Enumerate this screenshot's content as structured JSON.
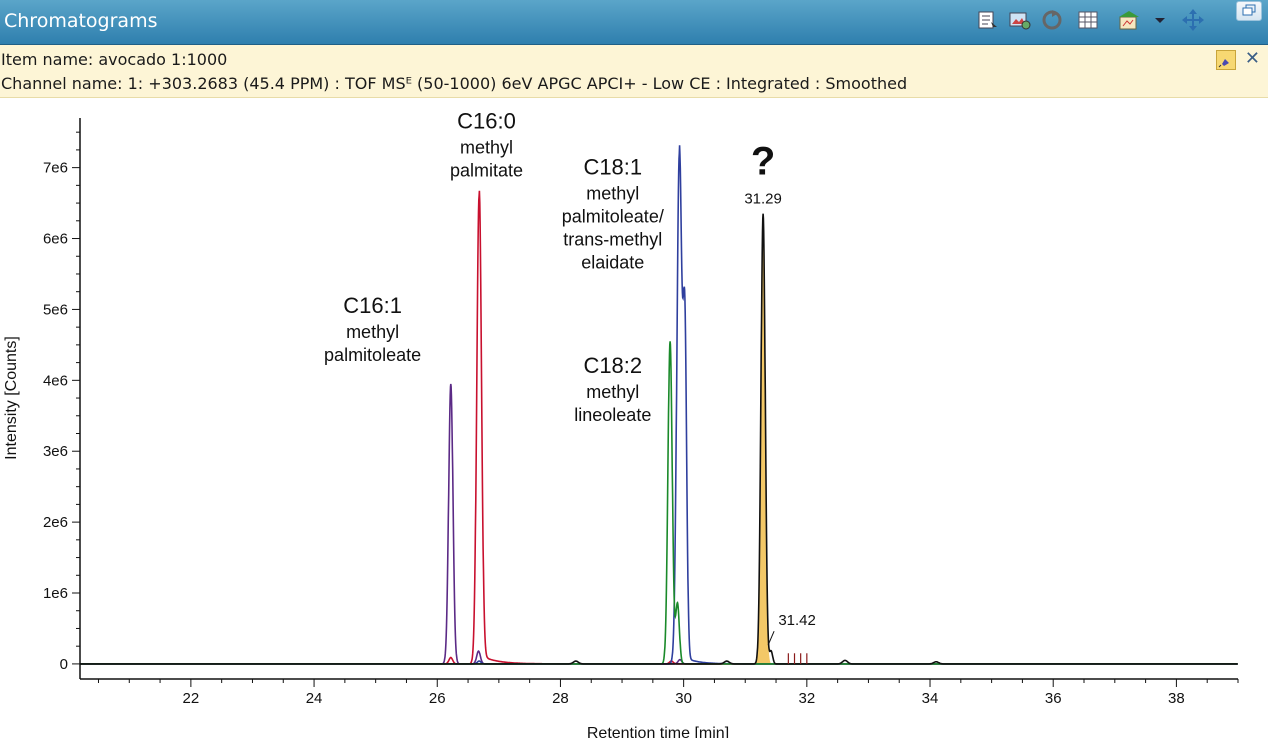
{
  "window": {
    "title": "Chromatograms"
  },
  "toolbar": {
    "icons": [
      "list-report-icon",
      "image-export-icon",
      "refresh-icon",
      "table-icon",
      "chart-stack-icon",
      "dropdown-arrow-icon",
      "move-arrows-icon"
    ],
    "restore_icon": "window-restore-icon"
  },
  "info": {
    "item_name": "Item name: avocado 1:1000",
    "channel_name": "Channel name: 1: +303.2683 (45.4 PPM) : TOF MSᴱ (50-1000) 6eV APGC APCI+ - Low CE : Integrated : Smoothed"
  },
  "chart_data": {
    "type": "line",
    "xlabel": "Retention time [min]",
    "ylabel": "Intensity [Counts]",
    "xlim": [
      20.2,
      39
    ],
    "ylim": [
      -100000,
      7700000
    ],
    "xticks": [
      22,
      24,
      26,
      28,
      30,
      32,
      34,
      36,
      38
    ],
    "xtick_labels": [
      "22",
      "24",
      "26",
      "28",
      "30",
      "32",
      "34",
      "36",
      "38"
    ],
    "yticks": [
      0,
      1000000,
      2000000,
      3000000,
      4000000,
      5000000,
      6000000,
      7000000
    ],
    "ytick_labels": [
      "0",
      "1e6",
      "2e6",
      "3e6",
      "4e6",
      "5e6",
      "6e6",
      "7e6"
    ],
    "series_colors": {
      "purple": "#5b2a86",
      "red": "#c8102e",
      "blue": "#2f3f9e",
      "green": "#1a8a2a",
      "black": "#111111"
    },
    "series": [
      {
        "color": "#5b2a86",
        "peaks": [
          {
            "x": 26.22,
            "y": 3950000,
            "w": 0.035
          },
          {
            "x": 26.67,
            "y": 180000,
            "w": 0.03
          },
          {
            "x": 29.94,
            "y": 60000,
            "w": 0.03
          }
        ]
      },
      {
        "color": "#c8102e",
        "peaks": [
          {
            "x": 26.68,
            "y": 6600000,
            "w": 0.038,
            "tail": 0.25
          },
          {
            "x": 26.22,
            "y": 90000,
            "w": 0.03
          },
          {
            "x": 29.8,
            "y": 40000,
            "w": 0.03
          }
        ]
      },
      {
        "color": "#2f3f9e",
        "peaks": [
          {
            "x": 29.93,
            "y": 7150000,
            "w": 0.04,
            "tail": 0.2
          },
          {
            "x": 30.02,
            "y": 4500000,
            "w": 0.03
          },
          {
            "x": 26.68,
            "y": 40000,
            "w": 0.03
          }
        ]
      },
      {
        "color": "#1a8a2a",
        "peaks": [
          {
            "x": 29.78,
            "y": 4550000,
            "w": 0.035
          },
          {
            "x": 29.9,
            "y": 850000,
            "w": 0.03
          }
        ]
      },
      {
        "color": "#111111",
        "peaks": [
          {
            "x": 31.29,
            "y": 6350000,
            "w": 0.035
          },
          {
            "x": 31.42,
            "y": 180000,
            "w": 0.025
          },
          {
            "x": 28.25,
            "y": 40000,
            "w": 0.04
          },
          {
            "x": 30.7,
            "y": 40000,
            "w": 0.04
          },
          {
            "x": 32.62,
            "y": 50000,
            "w": 0.04
          },
          {
            "x": 34.1,
            "y": 30000,
            "w": 0.04
          }
        ]
      }
    ],
    "highlight_area": {
      "color": "#f3c867",
      "x_from": 31.15,
      "x_to": 31.43,
      "peak_x": 31.29,
      "peak_y": 6350000,
      "w": 0.035
    },
    "small_markers": [
      31.7,
      31.8,
      31.9,
      32.0
    ],
    "peak_labels": [
      {
        "x": 31.29,
        "y": 6350000,
        "text": "31.29"
      },
      {
        "x": 31.42,
        "y": 180000,
        "text": "31.42"
      }
    ],
    "annotations": [
      {
        "id": "c160",
        "x": 26.8,
        "y": 7550000,
        "lines": [
          "C16:0",
          "methyl",
          "palmitate"
        ]
      },
      {
        "id": "c161",
        "x": 24.95,
        "y": 4950000,
        "lines": [
          "C16:1",
          "methyl",
          "palmitoleate"
        ]
      },
      {
        "id": "c181",
        "x": 28.85,
        "y": 6900000,
        "lines": [
          "C18:1",
          "methyl",
          "palmitoleate/",
          "trans-methyl",
          "elaidate"
        ]
      },
      {
        "id": "c182",
        "x": 28.85,
        "y": 4100000,
        "lines": [
          "C18:2",
          "methyl",
          "lineoleate"
        ]
      },
      {
        "id": "unknown",
        "x": 31.29,
        "y": 6900000,
        "lines": [
          "?"
        ]
      }
    ]
  }
}
